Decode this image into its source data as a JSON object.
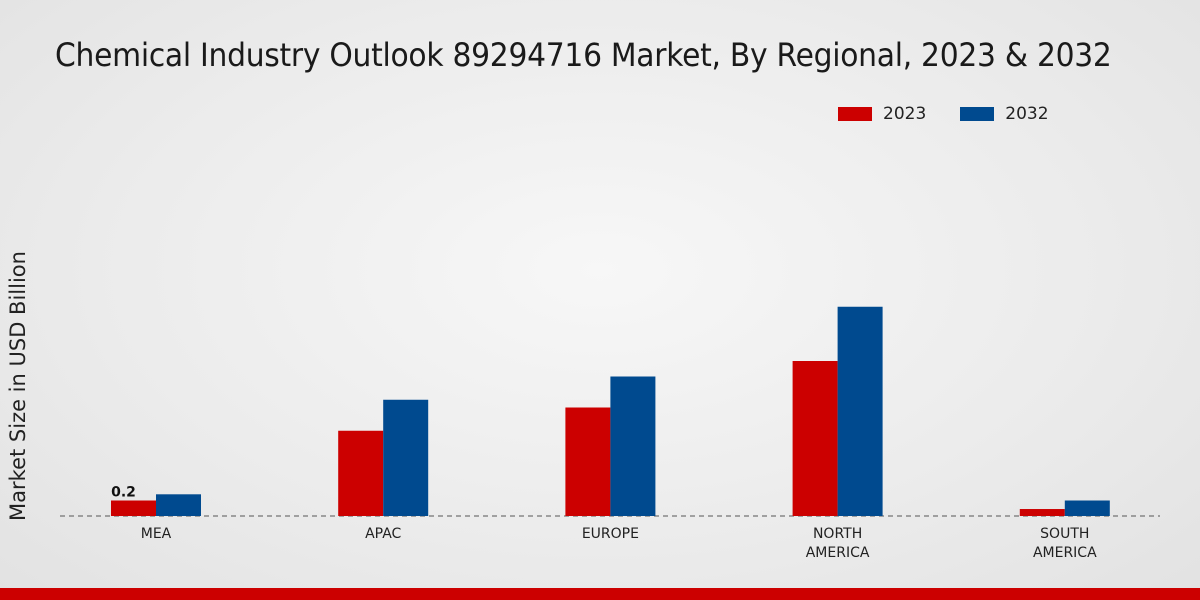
{
  "chart_data": {
    "type": "bar",
    "title": "Chemical Industry Outlook 89294716 Market, By Regional, 2023 & 2032",
    "xlabel": "",
    "ylabel": "Market Size in USD Billion",
    "categories": [
      [
        "MEA"
      ],
      [
        "APAC"
      ],
      [
        "EUROPE"
      ],
      [
        "NORTH",
        "AMERICA"
      ],
      [
        "SOUTH",
        "AMERICA"
      ]
    ],
    "series": [
      {
        "name": "2023",
        "color": "#cc0000",
        "values": [
          0.2,
          1.1,
          1.4,
          2.0,
          0.09
        ]
      },
      {
        "name": "2032",
        "color": "#004a8f",
        "values": [
          0.28,
          1.5,
          1.8,
          2.7,
          0.2
        ]
      }
    ],
    "data_labels": [
      {
        "series": 0,
        "index": 0,
        "text": "0.2"
      }
    ],
    "ylim": [
      0,
      3.5
    ],
    "grid": false,
    "legend": "top-right"
  }
}
